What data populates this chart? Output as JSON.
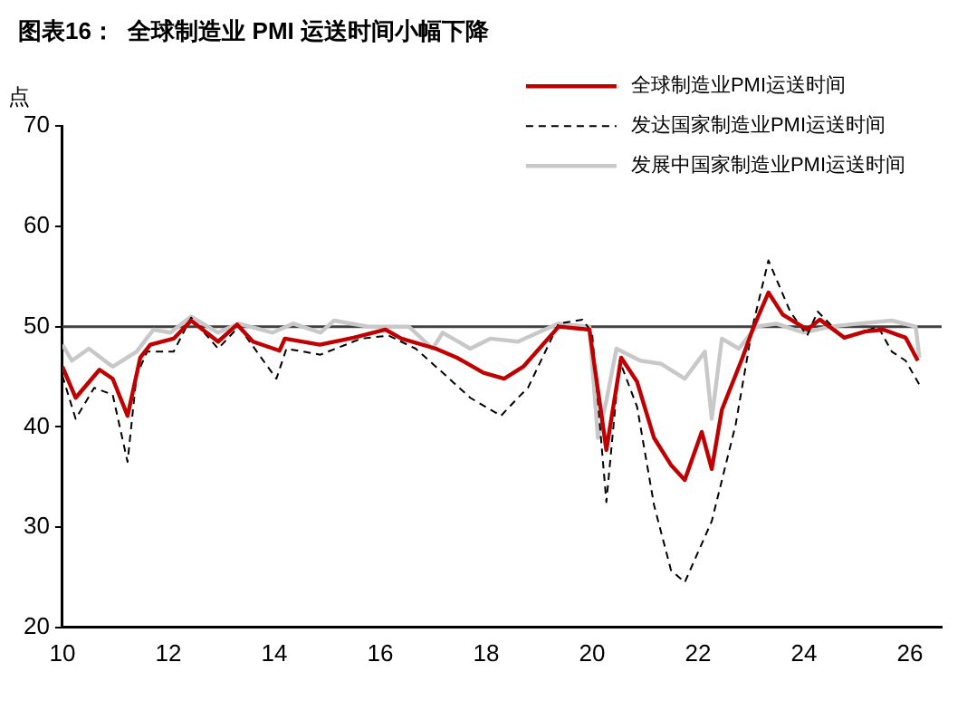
{
  "chart_data": {
    "type": "line",
    "title": "图表16：  全球制造业 PMI 运送时间小幅下降",
    "ylabel": "点",
    "xlim": [
      2010,
      2026.6
    ],
    "xticks": [
      {
        "value": 2010,
        "label": "10"
      },
      {
        "value": 2012,
        "label": "12"
      },
      {
        "value": 2014,
        "label": "14"
      },
      {
        "value": 2016,
        "label": "16"
      },
      {
        "value": 2018,
        "label": "18"
      },
      {
        "value": 2020,
        "label": "20"
      },
      {
        "value": 2022,
        "label": "22"
      },
      {
        "value": 2024,
        "label": "24"
      },
      {
        "value": 2026,
        "label": "26"
      }
    ],
    "ylim": [
      20,
      70
    ],
    "yticks": [
      20,
      30,
      40,
      50,
      60,
      70
    ],
    "grid": false,
    "legend": "top right",
    "marker": "none",
    "ref_lines": [
      {
        "axis": "y",
        "value": 50,
        "color": "#404040"
      }
    ],
    "series": [
      {
        "name": "全球制造业PMI运送时间",
        "color": "#c00000",
        "line_style": "solid",
        "x": [
          2010.0,
          2010.25,
          2010.7,
          2010.95,
          2011.23,
          2011.47,
          2011.66,
          2012.1,
          2012.43,
          2012.94,
          2013.3,
          2013.6,
          2014.1,
          2014.2,
          2014.86,
          2015.5,
          2016.1,
          2016.4,
          2017.05,
          2017.45,
          2017.95,
          2018.34,
          2018.7,
          2019.37,
          2019.95,
          2020.27,
          2020.55,
          2020.85,
          2021.17,
          2021.49,
          2021.75,
          2022.07,
          2022.26,
          2022.45,
          2022.84,
          2023.03,
          2023.33,
          2023.6,
          2024.06,
          2024.3,
          2024.76,
          2025.15,
          2025.5,
          2025.92,
          2026.15
        ],
        "values": [
          46.0,
          42.9,
          45.7,
          44.8,
          41.1,
          46.9,
          48.2,
          48.8,
          50.6,
          48.5,
          50.2,
          48.5,
          47.6,
          48.8,
          48.2,
          48.9,
          49.7,
          48.8,
          47.8,
          46.9,
          45.4,
          44.8,
          46.0,
          50.0,
          49.7,
          37.7,
          46.9,
          44.5,
          38.9,
          36.2,
          34.7,
          39.5,
          35.8,
          41.7,
          46.9,
          49.7,
          53.4,
          51.2,
          49.7,
          50.7,
          48.9,
          49.5,
          49.7,
          48.9,
          46.6
        ]
      },
      {
        "name": "发达国家制造业PMI运送时间",
        "color": "#000000",
        "line_style": "dashed",
        "x": [
          2010.0,
          2010.25,
          2010.6,
          2010.95,
          2011.23,
          2011.4,
          2011.6,
          2012.1,
          2012.43,
          2012.94,
          2013.33,
          2014.04,
          2014.23,
          2014.87,
          2015.64,
          2016.16,
          2016.67,
          2017.18,
          2017.7,
          2018.28,
          2018.6,
          2018.79,
          2019.37,
          2019.82,
          2020.0,
          2020.27,
          2020.52,
          2020.85,
          2021.17,
          2021.49,
          2021.75,
          2022.26,
          2022.71,
          2023.03,
          2023.33,
          2023.74,
          2024.06,
          2024.26,
          2024.76,
          2025.4,
          2025.66,
          2025.92,
          2026.18
        ],
        "values": [
          45.1,
          40.8,
          43.9,
          43.2,
          36.5,
          45.1,
          47.5,
          47.5,
          50.9,
          47.8,
          50.0,
          44.8,
          47.8,
          47.2,
          48.8,
          49.1,
          47.8,
          45.4,
          42.9,
          41.1,
          42.9,
          43.9,
          50.3,
          50.7,
          49.4,
          32.5,
          46.6,
          42.0,
          32.2,
          25.7,
          24.5,
          30.6,
          40.2,
          50.0,
          56.6,
          51.5,
          49.1,
          51.5,
          48.8,
          50.0,
          47.5,
          46.6,
          44.2
        ]
      },
      {
        "name": "发展中国家制造业PMI运送时间",
        "color": "#c8c8c8",
        "line_style": "solid",
        "x": [
          2010.0,
          2010.18,
          2010.5,
          2010.95,
          2011.4,
          2011.72,
          2012.04,
          2012.43,
          2012.94,
          2013.33,
          2013.97,
          2014.36,
          2014.87,
          2015.13,
          2015.77,
          2016.54,
          2016.99,
          2017.18,
          2017.7,
          2018.08,
          2018.6,
          2018.98,
          2019.37,
          2019.95,
          2020.11,
          2020.27,
          2020.46,
          2020.91,
          2021.3,
          2021.75,
          2022.13,
          2022.26,
          2022.45,
          2022.77,
          2023.1,
          2023.48,
          2023.99,
          2024.5,
          2025.02,
          2025.66,
          2026.11,
          2026.18
        ],
        "values": [
          48.2,
          46.6,
          47.8,
          46.0,
          47.5,
          49.7,
          49.4,
          51.0,
          49.4,
          50.3,
          49.4,
          50.3,
          49.4,
          50.6,
          50.0,
          50.0,
          47.8,
          49.4,
          47.8,
          48.8,
          48.5,
          49.4,
          50.3,
          50.0,
          38.9,
          42.6,
          47.8,
          46.6,
          46.3,
          44.8,
          47.5,
          40.8,
          48.8,
          47.8,
          50.0,
          50.3,
          49.4,
          50.0,
          50.3,
          50.6,
          50.0,
          46.9
        ]
      }
    ]
  }
}
